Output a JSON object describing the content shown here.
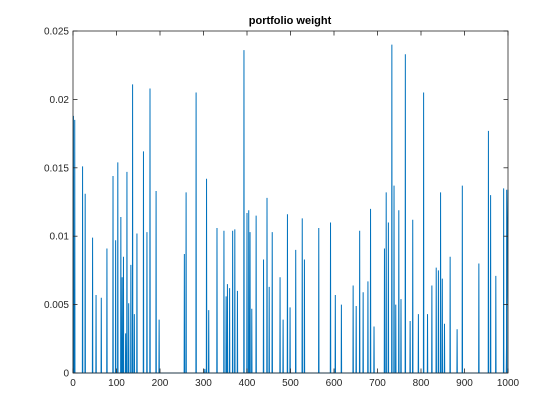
{
  "chart_data": {
    "type": "line",
    "title": "portfolio weight",
    "xlabel": "",
    "ylabel": "",
    "xlim": [
      0,
      1000
    ],
    "ylim": [
      0,
      0.025
    ],
    "grid": false,
    "x_ticks": [
      0,
      100,
      200,
      300,
      400,
      500,
      600,
      700,
      800,
      900,
      1000
    ],
    "x_tick_labels": [
      "0",
      "100",
      "200",
      "300",
      "400",
      "500",
      "600",
      "700",
      "800",
      "900",
      "1000"
    ],
    "y_ticks": [
      0,
      0.005,
      0.01,
      0.015,
      0.02,
      0.025
    ],
    "y_tick_labels": [
      "0",
      "0.005",
      "0.01",
      "0.015",
      "0.02",
      "0.025"
    ],
    "line_color": "#0072BD",
    "series": [
      {
        "spikes": [
          [
            1,
            0.0188
          ],
          [
            4,
            0.0185
          ],
          [
            22,
            0.0151
          ],
          [
            28,
            0.0131
          ],
          [
            45,
            0.0099
          ],
          [
            53,
            0.0057
          ],
          [
            65,
            0.0055
          ],
          [
            78,
            0.0091
          ],
          [
            92,
            0.0144
          ],
          [
            98,
            0.0097
          ],
          [
            103,
            0.0154
          ],
          [
            110,
            0.0114
          ],
          [
            113,
            0.007
          ],
          [
            116,
            0.0085
          ],
          [
            121,
            0.0029
          ],
          [
            124,
            0.0147
          ],
          [
            128,
            0.0051
          ],
          [
            133,
            0.0079
          ],
          [
            137,
            0.0211
          ],
          [
            141,
            0.0043
          ],
          [
            147,
            0.0102
          ],
          [
            162,
            0.0162
          ],
          [
            170,
            0.0103
          ],
          [
            177,
            0.0208
          ],
          [
            191,
            0.0133
          ],
          [
            198,
            0.0039
          ],
          [
            256,
            0.0087
          ],
          [
            260,
            0.0132
          ],
          [
            283,
            0.0205
          ],
          [
            303,
            0.0003
          ],
          [
            307,
            0.0142
          ],
          [
            312,
            0.0046
          ],
          [
            331,
            0.0106
          ],
          [
            347,
            0.0104
          ],
          [
            352,
            0.0056
          ],
          [
            355,
            0.0065
          ],
          [
            360,
            0.0062
          ],
          [
            367,
            0.0104
          ],
          [
            372,
            0.0105
          ],
          [
            378,
            0.006
          ],
          [
            393,
            0.0236
          ],
          [
            400,
            0.0117
          ],
          [
            404,
            0.0119
          ],
          [
            407,
            0.0103
          ],
          [
            411,
            0.0047
          ],
          [
            421,
            0.0115
          ],
          [
            438,
            0.0083
          ],
          [
            446,
            0.0128
          ],
          [
            451,
            0.0063
          ],
          [
            458,
            0.0103
          ],
          [
            476,
            0.007
          ],
          [
            483,
            0.0039
          ],
          [
            493,
            0.0116
          ],
          [
            499,
            0.0048
          ],
          [
            512,
            0.009
          ],
          [
            527,
            0.0113
          ],
          [
            532,
            0.0083
          ],
          [
            565,
            0.0106
          ],
          [
            592,
            0.011
          ],
          [
            603,
            0.0057
          ],
          [
            617,
            0.005
          ],
          [
            644,
            0.0064
          ],
          [
            651,
            0.0049
          ],
          [
            659,
            0.0104
          ],
          [
            667,
            0.0059
          ],
          [
            678,
            0.0067
          ],
          [
            684,
            0.012
          ],
          [
            692,
            0.0034
          ],
          [
            716,
            0.0091
          ],
          [
            720,
            0.0132
          ],
          [
            725,
            0.011
          ],
          [
            733,
            0.024
          ],
          [
            738,
            0.0137
          ],
          [
            742,
            0.005
          ],
          [
            749,
            0.0119
          ],
          [
            754,
            0.0054
          ],
          [
            764,
            0.0233
          ],
          [
            775,
            0.0038
          ],
          [
            781,
            0.0112
          ],
          [
            794,
            0.0043
          ],
          [
            806,
            0.0205
          ],
          [
            815,
            0.0043
          ],
          [
            825,
            0.0064
          ],
          [
            835,
            0.0077
          ],
          [
            840,
            0.0075
          ],
          [
            845,
            0.0132
          ],
          [
            849,
            0.0069
          ],
          [
            854,
            0.0036
          ],
          [
            867,
            0.0085
          ],
          [
            883,
            0.0032
          ],
          [
            895,
            0.0137
          ],
          [
            933,
            0.008
          ],
          [
            955,
            0.0177
          ],
          [
            960,
            0.013
          ],
          [
            972,
            0.0071
          ],
          [
            990,
            0.0135
          ],
          [
            997,
            0.0134
          ]
        ]
      }
    ]
  }
}
